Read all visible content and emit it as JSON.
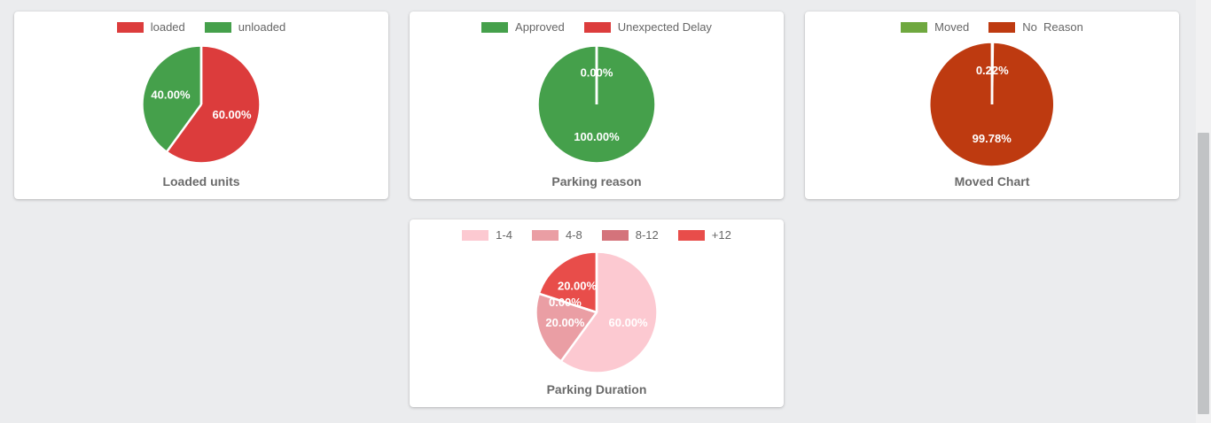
{
  "page": {
    "background_color": "#ebecee",
    "card_color": "#ffffff",
    "legend_text_color": "#666666",
    "title_text_color": "#6a6a6a",
    "pie_label_color": "#ffffff"
  },
  "chart_data": [
    {
      "type": "pie",
      "title": "Loaded units",
      "legend_position": "top",
      "labels": [
        "loaded",
        "unloaded"
      ],
      "values": [
        60,
        40
      ],
      "display_values": [
        "60.00%",
        "40.00%"
      ],
      "colors": [
        "#dc3c3c",
        "#45a04b"
      ],
      "radius": 66
    },
    {
      "type": "pie",
      "title": "Parking reason",
      "legend_position": "top",
      "labels": [
        "Approved",
        "Unexpected Delay"
      ],
      "values": [
        100,
        0
      ],
      "display_values": [
        "100.00%",
        "0.00%"
      ],
      "colors": [
        "#45a04b",
        "#dc3c3c"
      ],
      "radius": 66
    },
    {
      "type": "pie",
      "title": "Moved Chart",
      "legend_position": "top",
      "labels": [
        "Moved",
        "No  Reason"
      ],
      "values": [
        0.22,
        99.78
      ],
      "display_values": [
        "0.22%",
        "99.78%"
      ],
      "colors": [
        "#6fa83f",
        "#be3a10"
      ],
      "radius": 70
    },
    {
      "type": "pie",
      "title": "Parking Duration",
      "legend_position": "top",
      "labels": [
        "1-4",
        "4-8",
        "8-12",
        "+12"
      ],
      "values": [
        60,
        20,
        0,
        20
      ],
      "display_values": [
        "60.00%",
        "20.00%",
        "0.00%",
        "20.00%"
      ],
      "colors": [
        "#fcc9d1",
        "#ea9ea4",
        "#d4737b",
        "#e84d4a"
      ],
      "radius": 68
    }
  ]
}
